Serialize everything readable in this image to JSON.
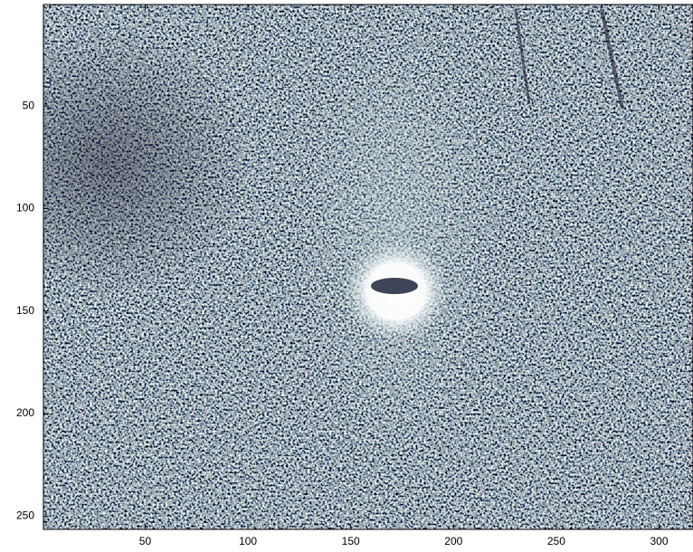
{
  "chart_data": {
    "type": "image",
    "xlim": [
      0.5,
      316.5
    ],
    "ylim": [
      0.5,
      256.5
    ],
    "xticks": [
      50,
      100,
      150,
      200,
      250,
      300
    ],
    "yticks": [
      50,
      100,
      150,
      200,
      250
    ]
  }
}
